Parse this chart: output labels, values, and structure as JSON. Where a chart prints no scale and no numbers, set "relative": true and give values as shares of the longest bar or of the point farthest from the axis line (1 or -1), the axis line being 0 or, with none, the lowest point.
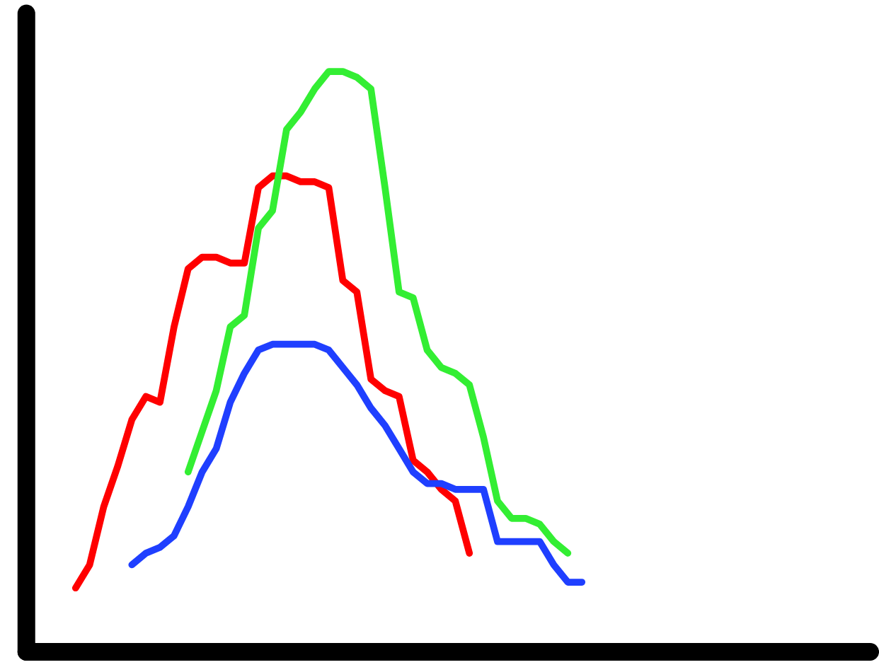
{
  "chart_data": {
    "type": "line",
    "relative": true,
    "grid": false,
    "legend": false,
    "categories": [
      null,
      null,
      null,
      null,
      null,
      null,
      null,
      null,
      null,
      null,
      null,
      null,
      null,
      null,
      null,
      null,
      null,
      null,
      null,
      null,
      null,
      null,
      null,
      null,
      null,
      null,
      null,
      null,
      null,
      null,
      null,
      null,
      null,
      null,
      null,
      null,
      null,
      null,
      null,
      null,
      null,
      null,
      null,
      null,
      null,
      null,
      null,
      null,
      null,
      null,
      null,
      null,
      null,
      null,
      null,
      null,
      null,
      null,
      null,
      null
    ],
    "series": [
      {
        "color": "#ff0000",
        "values": [
          null,
          null,
          null,
          0.11,
          0.15,
          0.25,
          0.32,
          0.4,
          0.44,
          0.43,
          0.56,
          0.66,
          0.68,
          0.68,
          0.67,
          0.67,
          0.8,
          0.82,
          0.82,
          0.81,
          0.81,
          0.8,
          0.64,
          0.62,
          0.47,
          0.45,
          0.44,
          0.33,
          0.31,
          0.28,
          0.26,
          0.17,
          null,
          null,
          null,
          null,
          null,
          null,
          null,
          null,
          null,
          null,
          null,
          null,
          null,
          null,
          null,
          null,
          null,
          null,
          null,
          null,
          null,
          null,
          null,
          null,
          null,
          null,
          null,
          null
        ]
      },
      {
        "color": "#33ee33",
        "values": [
          null,
          null,
          null,
          null,
          null,
          null,
          null,
          null,
          null,
          null,
          null,
          0.31,
          0.38,
          0.45,
          0.56,
          0.58,
          0.73,
          0.76,
          0.9,
          0.93,
          0.97,
          1.0,
          1.0,
          0.99,
          0.97,
          0.8,
          0.62,
          0.61,
          0.52,
          0.49,
          0.48,
          0.46,
          0.37,
          0.26,
          0.23,
          0.23,
          0.22,
          0.19,
          0.17,
          null,
          null,
          null,
          null,
          null,
          null,
          null,
          null,
          null,
          null,
          null,
          null,
          null,
          null,
          null,
          null,
          null,
          null,
          null,
          null,
          null
        ]
      },
      {
        "color": "#1f3fff",
        "values": [
          null,
          null,
          null,
          null,
          null,
          null,
          null,
          0.15,
          0.17,
          0.18,
          0.2,
          0.25,
          0.31,
          0.35,
          0.43,
          0.48,
          0.52,
          0.53,
          0.53,
          0.53,
          0.53,
          0.52,
          0.49,
          0.46,
          0.42,
          0.39,
          0.35,
          0.31,
          0.29,
          0.29,
          0.28,
          0.28,
          0.28,
          0.19,
          0.19,
          0.19,
          0.19,
          0.15,
          0.12,
          0.12,
          null,
          null,
          null,
          null,
          null,
          null,
          null,
          null,
          null,
          null,
          null,
          null,
          null,
          null,
          null,
          null,
          null,
          null,
          null,
          null
        ]
      }
    ]
  }
}
